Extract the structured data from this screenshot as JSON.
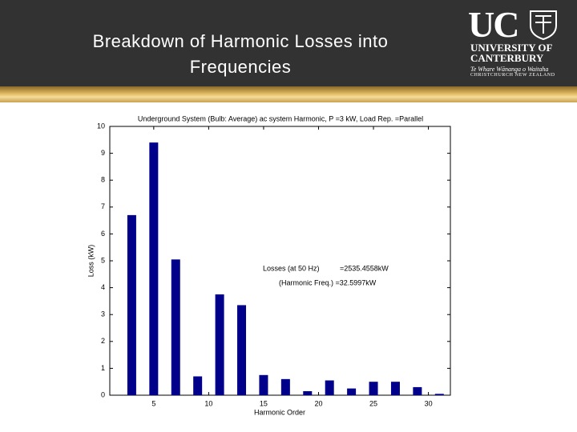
{
  "header": {
    "title": "Breakdown of Harmonic Losses into Frequencies"
  },
  "logo": {
    "mark": "UC",
    "line1": "UNIVERSITY OF",
    "line2": "CANTERBURY",
    "motto": "Te Whare Wānanga o Waitaha",
    "place": "CHRISTCHURCH NEW ZEALAND"
  },
  "chart_data": {
    "type": "bar",
    "title": "Underground System (Bulb: Average) ac system Harmonic, P =3 kW, Load Rep. =Parallel",
    "xlabel": "Harmonic Order",
    "ylabel": "Loss (kW)",
    "annotations": [
      "Losses  (at 50 Hz)",
      "=2535.4558kW",
      "(Harmonic Freq.) =32.5997kW"
    ],
    "x": [
      3,
      5,
      7,
      9,
      11,
      13,
      15,
      17,
      19,
      21,
      23,
      25,
      27,
      29,
      31
    ],
    "values": [
      6.7,
      9.4,
      5.05,
      0.7,
      3.75,
      3.35,
      0.75,
      0.6,
      0.15,
      0.55,
      0.25,
      0.5,
      0.5,
      0.3,
      0.05
    ],
    "color": "#00008b",
    "xlim": [
      1,
      32
    ],
    "xticks": [
      5,
      10,
      15,
      20,
      25,
      30
    ],
    "ylim": [
      0,
      10
    ],
    "yticks": [
      0,
      1,
      2,
      3,
      4,
      5,
      6,
      7,
      8,
      9,
      10
    ],
    "grid": false
  }
}
